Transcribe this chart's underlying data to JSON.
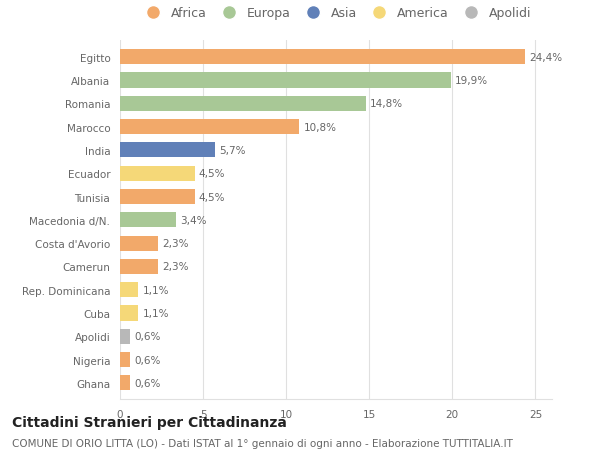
{
  "countries": [
    "Egitto",
    "Albania",
    "Romania",
    "Marocco",
    "India",
    "Ecuador",
    "Tunisia",
    "Macedonia d/N.",
    "Costa d'Avorio",
    "Camerun",
    "Rep. Dominicana",
    "Cuba",
    "Apolidi",
    "Nigeria",
    "Ghana"
  ],
  "values": [
    24.4,
    19.9,
    14.8,
    10.8,
    5.7,
    4.5,
    4.5,
    3.4,
    2.3,
    2.3,
    1.1,
    1.1,
    0.6,
    0.6,
    0.6
  ],
  "labels": [
    "24,4%",
    "19,9%",
    "14,8%",
    "10,8%",
    "5,7%",
    "4,5%",
    "4,5%",
    "3,4%",
    "2,3%",
    "2,3%",
    "1,1%",
    "1,1%",
    "0,6%",
    "0,6%",
    "0,6%"
  ],
  "continents": [
    "Africa",
    "Europa",
    "Europa",
    "Africa",
    "Asia",
    "America",
    "Africa",
    "Europa",
    "Africa",
    "Africa",
    "America",
    "America",
    "Apolidi",
    "Africa",
    "Africa"
  ],
  "colors": {
    "Africa": "#F2A96A",
    "Europa": "#A8C896",
    "Asia": "#6080B8",
    "America": "#F5D878",
    "Apolidi": "#B8B8B8"
  },
  "legend_order": [
    "Africa",
    "Europa",
    "Asia",
    "America",
    "Apolidi"
  ],
  "title": "Cittadini Stranieri per Cittadinanza",
  "subtitle": "COMUNE DI ORIO LITTA (LO) - Dati ISTAT al 1° gennaio di ogni anno - Elaborazione TUTTITALIA.IT",
  "xlim": [
    0,
    26
  ],
  "background_color": "#ffffff",
  "grid_color": "#e0e0e0",
  "bar_height": 0.65,
  "title_fontsize": 10,
  "subtitle_fontsize": 7.5,
  "label_fontsize": 7.5,
  "tick_fontsize": 7.5,
  "legend_fontsize": 9
}
